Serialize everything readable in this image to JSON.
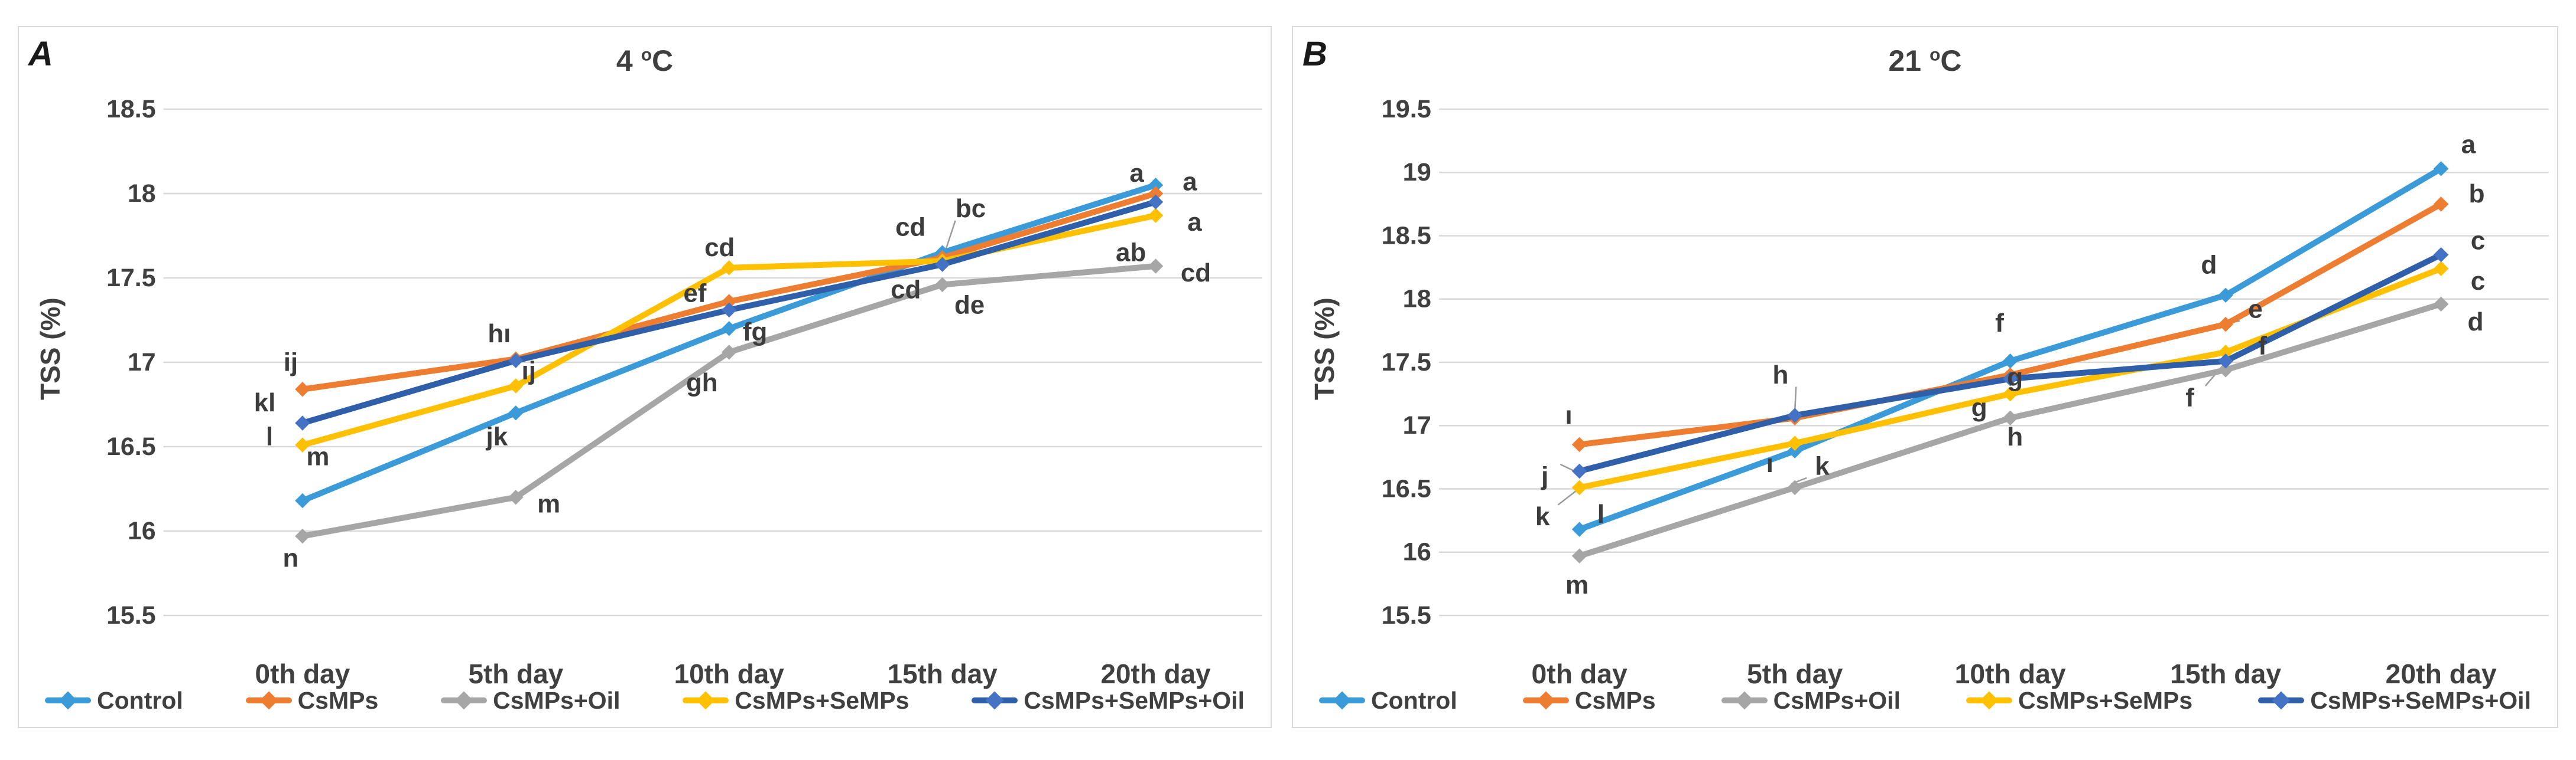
{
  "figure": {
    "background": "#FFFFFF",
    "panel_border_color": "#D9D9D9",
    "grid_color": "#D9D9D9",
    "text_color": "#404040",
    "annotation_color": "#3C3C3C",
    "leader_color": "#9B9B9B"
  },
  "chart_data": [
    {
      "type": "line",
      "panel_letter": "A",
      "title": {
        "number": "4",
        "degree": "o",
        "unit": "C"
      },
      "ylabel": "TSS (%)",
      "ylim": [
        15.5,
        18.5
      ],
      "yticks": [
        15.5,
        16,
        16.5,
        17,
        17.5,
        18,
        18.5
      ],
      "grid": true,
      "legend_position": "bottom",
      "categories": [
        "0th day",
        "5th day",
        "10th day",
        "15th day",
        "20th day"
      ],
      "series": [
        {
          "name": "Control",
          "color": "#3B9BD8",
          "marker_color": "#3B9BD8",
          "values": [
            16.18,
            16.7,
            17.2,
            17.65,
            18.05
          ]
        },
        {
          "name": "CsMPs",
          "color": "#ED7D31",
          "marker_color": "#ED7D31",
          "values": [
            16.84,
            17.02,
            17.36,
            17.62,
            18.0
          ]
        },
        {
          "name": "CsMPs+Oil",
          "color": "#A6A6A6",
          "marker_color": "#A6A6A6",
          "values": [
            15.97,
            16.2,
            17.06,
            17.46,
            17.57
          ]
        },
        {
          "name": "CsMPs+SeMPs",
          "color": "#FFC000",
          "marker_color": "#FFC000",
          "values": [
            16.51,
            16.86,
            17.56,
            17.6,
            17.87
          ]
        },
        {
          "name": "CsMPs+SeMPs+Oil",
          "color": "#2F5FA8",
          "marker_color": "#4472C4",
          "values": [
            16.64,
            17.01,
            17.31,
            17.58,
            17.95
          ]
        }
      ],
      "point_labels": [
        {
          "x": 0,
          "y": 17.0,
          "dx": -20,
          "text": "ij"
        },
        {
          "x": 0,
          "y": 16.76,
          "dx": -64,
          "text": "kl"
        },
        {
          "x": 0,
          "y": 16.56,
          "dx": -56,
          "text": "l"
        },
        {
          "x": 0,
          "y": 16.44,
          "dx": 26,
          "text": "m"
        },
        {
          "x": 0,
          "y": 15.84,
          "dx": -20,
          "text": "n"
        },
        {
          "x": 1,
          "y": 17.17,
          "dx": -28,
          "text": "hı"
        },
        {
          "x": 1,
          "y": 16.95,
          "dx": 22,
          "text": "ıj"
        },
        {
          "x": 1,
          "y": 16.56,
          "dx": -32,
          "text": "jk"
        },
        {
          "x": 1,
          "y": 16.16,
          "dx": 56,
          "text": "m"
        },
        {
          "x": 2,
          "y": 17.68,
          "dx": -16,
          "text": "cd"
        },
        {
          "x": 2,
          "y": 17.41,
          "dx": -58,
          "text": "ef"
        },
        {
          "x": 2,
          "y": 17.18,
          "dx": 44,
          "text": "fg"
        },
        {
          "x": 2,
          "y": 16.88,
          "dx": -46,
          "text": "gh"
        },
        {
          "x": 3,
          "y": 17.8,
          "dx": -54,
          "text": "cd"
        },
        {
          "x": 3,
          "y": 17.91,
          "dx": 48,
          "text": "bc",
          "leader": {
            "x": 3,
            "y": 17.67,
            "dx": 6
          }
        },
        {
          "x": 3,
          "y": 17.43,
          "dx": -62,
          "text": "cd"
        },
        {
          "x": 3,
          "y": 17.34,
          "dx": 46,
          "text": "de"
        },
        {
          "x": 4,
          "y": 18.12,
          "dx": -32,
          "text": "a"
        },
        {
          "x": 4,
          "y": 18.07,
          "dx": 58,
          "text": "a"
        },
        {
          "x": 4,
          "y": 17.83,
          "dx": 66,
          "text": "a"
        },
        {
          "x": 4,
          "y": 17.65,
          "dx": -42,
          "text": "ab"
        },
        {
          "x": 4,
          "y": 17.53,
          "dx": 68,
          "text": "cd"
        }
      ]
    },
    {
      "type": "line",
      "panel_letter": "B",
      "title": {
        "number": "21",
        "degree": "o",
        "unit": "C"
      },
      "ylabel": "TSS (%)",
      "ylim": [
        15.5,
        19.5
      ],
      "yticks": [
        15.5,
        16,
        16.5,
        17,
        17.5,
        18,
        18.5,
        19,
        19.5
      ],
      "grid": true,
      "legend_position": "bottom",
      "categories": [
        "0th day",
        "5th day",
        "10th day",
        "15th day",
        "20th day"
      ],
      "series": [
        {
          "name": "Control",
          "color": "#3B9BD8",
          "marker_color": "#3B9BD8",
          "values": [
            16.18,
            16.8,
            17.51,
            18.03,
            19.03
          ]
        },
        {
          "name": "CsMPs",
          "color": "#ED7D31",
          "marker_color": "#ED7D31",
          "values": [
            16.85,
            17.06,
            17.4,
            17.8,
            18.75
          ]
        },
        {
          "name": "CsMPs+Oil",
          "color": "#A6A6A6",
          "marker_color": "#A6A6A6",
          "values": [
            15.97,
            16.51,
            17.06,
            17.44,
            17.96
          ]
        },
        {
          "name": "CsMPs+SeMPs",
          "color": "#FFC000",
          "marker_color": "#FFC000",
          "values": [
            16.51,
            16.86,
            17.25,
            17.58,
            18.24
          ]
        },
        {
          "name": "CsMPs+SeMPs+Oil",
          "color": "#2F5FA8",
          "marker_color": "#4472C4",
          "values": [
            16.64,
            17.08,
            17.37,
            17.51,
            18.35
          ]
        }
      ],
      "point_labels": [
        {
          "x": 0,
          "y": 17.08,
          "dx": -18,
          "text": "ı"
        },
        {
          "x": 0,
          "y": 16.6,
          "dx": -58,
          "text": "j",
          "leader": {
            "x": 0,
            "y": 16.64,
            "dx": -8
          }
        },
        {
          "x": 0,
          "y": 16.28,
          "dx": -62,
          "text": "k",
          "leader": {
            "x": 0,
            "y": 16.49,
            "dx": -4
          }
        },
        {
          "x": 0,
          "y": 16.3,
          "dx": 36,
          "text": "l"
        },
        {
          "x": 0,
          "y": 15.74,
          "dx": -4,
          "text": "m"
        },
        {
          "x": 1,
          "y": 17.4,
          "dx": -24,
          "text": "h",
          "leader": {
            "x": 1,
            "y": 17.11,
            "dx": 0
          }
        },
        {
          "x": 1,
          "y": 16.7,
          "dx": -42,
          "text": "ı"
        },
        {
          "x": 1,
          "y": 16.68,
          "dx": 46,
          "text": "k",
          "leader": {
            "x": 1,
            "y": 16.54,
            "dx": -6
          }
        },
        {
          "x": 2,
          "y": 17.81,
          "dx": -18,
          "text": "f"
        },
        {
          "x": 2,
          "y": 17.38,
          "dx": 8,
          "text": "g"
        },
        {
          "x": 2,
          "y": 17.14,
          "dx": -52,
          "text": "g"
        },
        {
          "x": 2,
          "y": 16.91,
          "dx": 8,
          "text": "h"
        },
        {
          "x": 3,
          "y": 18.27,
          "dx": -28,
          "text": "d"
        },
        {
          "x": 3,
          "y": 17.92,
          "dx": 50,
          "text": "e",
          "leader": {
            "x": 3,
            "y": 17.81,
            "dx": 4
          }
        },
        {
          "x": 3,
          "y": 17.63,
          "dx": 62,
          "text": "f"
        },
        {
          "x": 3,
          "y": 17.22,
          "dx": -60,
          "text": "f",
          "leader": {
            "x": 3,
            "y": 17.49,
            "dx": -2
          }
        },
        {
          "x": 4,
          "y": 19.22,
          "dx": 46,
          "text": "a"
        },
        {
          "x": 4,
          "y": 18.83,
          "dx": 60,
          "text": "b"
        },
        {
          "x": 4,
          "y": 18.46,
          "dx": 62,
          "text": "c"
        },
        {
          "x": 4,
          "y": 18.14,
          "dx": 62,
          "text": "c"
        },
        {
          "x": 4,
          "y": 17.82,
          "dx": 58,
          "text": "d"
        }
      ]
    }
  ]
}
